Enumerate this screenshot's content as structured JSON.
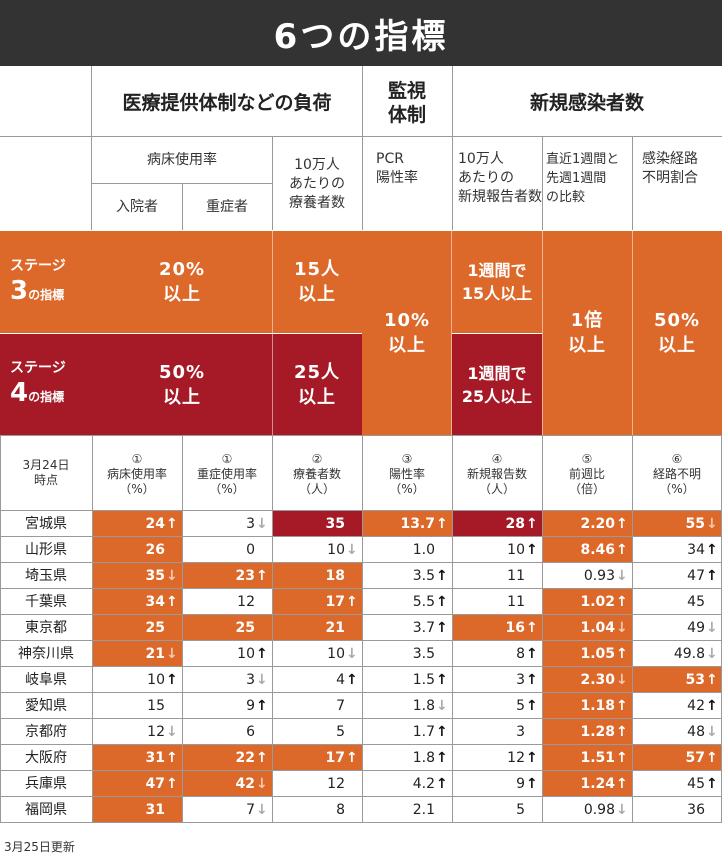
{
  "title": "6つの指標",
  "groups": {
    "medical": "医療提供体制などの負荷",
    "monitoring": "監視\n体制",
    "infections": "新規感染者数"
  },
  "sub_headers": {
    "bed_usage": "病床使用率",
    "admitted": "入院者",
    "severe": "重症者",
    "recuperating": "10万人\nあたりの\n療養者数",
    "pcr": "PCR\n陽性率",
    "new_reports": "10万人\nあたりの\n新規報告者数",
    "week_ratio": "直近1週間と\n先週1週間\nの比較",
    "unknown_route": "感染経路\n不明割合"
  },
  "stages": {
    "stage3": {
      "label_top": "ステージ",
      "label_num": "3",
      "label_suffix": "の指標",
      "beds": "20%\n以上",
      "recuperating": "15人\n以上",
      "new_reports": "1週間で\n15人以上"
    },
    "stage4": {
      "label_top": "ステージ",
      "label_num": "4",
      "label_suffix": "の指標",
      "beds": "50%\n以上",
      "recuperating": "25人\n以上",
      "new_reports": "1週間で\n25人以上"
    },
    "pcr": "10%\n以上",
    "week_ratio": "1倍\n以上",
    "unknown_route": "50%\n以上"
  },
  "table": {
    "date_header": "3月24日\n時点",
    "columns": [
      "①\n病床使用率\n（%）",
      "①\n重症使用率\n（%）",
      "②\n療養者数\n（人）",
      "③\n陽性率\n（%）",
      "④\n新規報告数\n（人）",
      "⑤\n前週比\n（倍）",
      "⑥\n経路不明\n（%）"
    ],
    "rows": [
      {
        "pref": "宮城県",
        "cells": [
          {
            "v": "24",
            "a": "up",
            "h": "o"
          },
          {
            "v": "3",
            "a": "down",
            "h": ""
          },
          {
            "v": "35",
            "a": "",
            "h": "r"
          },
          {
            "v": "13.7",
            "a": "up",
            "h": "o"
          },
          {
            "v": "28",
            "a": "up",
            "h": "r"
          },
          {
            "v": "2.20",
            "a": "up",
            "h": "o"
          },
          {
            "v": "55",
            "a": "down",
            "h": "o"
          }
        ]
      },
      {
        "pref": "山形県",
        "cells": [
          {
            "v": "26",
            "a": "",
            "h": "o"
          },
          {
            "v": "0",
            "a": "",
            "h": ""
          },
          {
            "v": "10",
            "a": "down",
            "h": ""
          },
          {
            "v": "1.0",
            "a": "",
            "h": ""
          },
          {
            "v": "10",
            "a": "up",
            "h": ""
          },
          {
            "v": "8.46",
            "a": "up",
            "h": "o"
          },
          {
            "v": "34",
            "a": "up",
            "h": ""
          }
        ]
      },
      {
        "pref": "埼玉県",
        "cells": [
          {
            "v": "35",
            "a": "down",
            "h": "o"
          },
          {
            "v": "23",
            "a": "up",
            "h": "o"
          },
          {
            "v": "18",
            "a": "",
            "h": "o"
          },
          {
            "v": "3.5",
            "a": "up",
            "h": ""
          },
          {
            "v": "11",
            "a": "",
            "h": ""
          },
          {
            "v": "0.93",
            "a": "down",
            "h": ""
          },
          {
            "v": "47",
            "a": "up",
            "h": ""
          }
        ]
      },
      {
        "pref": "千葉県",
        "cells": [
          {
            "v": "34",
            "a": "up",
            "h": "o"
          },
          {
            "v": "12",
            "a": "",
            "h": ""
          },
          {
            "v": "17",
            "a": "up",
            "h": "o"
          },
          {
            "v": "5.5",
            "a": "up",
            "h": ""
          },
          {
            "v": "11",
            "a": "",
            "h": ""
          },
          {
            "v": "1.02",
            "a": "up",
            "h": "o"
          },
          {
            "v": "45",
            "a": "",
            "h": ""
          }
        ]
      },
      {
        "pref": "東京都",
        "cells": [
          {
            "v": "25",
            "a": "",
            "h": "o"
          },
          {
            "v": "25",
            "a": "",
            "h": "o"
          },
          {
            "v": "21",
            "a": "",
            "h": "o"
          },
          {
            "v": "3.7",
            "a": "up",
            "h": ""
          },
          {
            "v": "16",
            "a": "up",
            "h": "o"
          },
          {
            "v": "1.04",
            "a": "down",
            "h": "o"
          },
          {
            "v": "49",
            "a": "down",
            "h": ""
          }
        ]
      },
      {
        "pref": "神奈川県",
        "cells": [
          {
            "v": "21",
            "a": "down",
            "h": "o"
          },
          {
            "v": "10",
            "a": "up",
            "h": ""
          },
          {
            "v": "10",
            "a": "down",
            "h": ""
          },
          {
            "v": "3.5",
            "a": "",
            "h": ""
          },
          {
            "v": "8",
            "a": "up",
            "h": ""
          },
          {
            "v": "1.05",
            "a": "up",
            "h": "o"
          },
          {
            "v": "49.8",
            "a": "down",
            "h": ""
          }
        ]
      },
      {
        "pref": "岐阜県",
        "cells": [
          {
            "v": "10",
            "a": "up",
            "h": ""
          },
          {
            "v": "3",
            "a": "down",
            "h": ""
          },
          {
            "v": "4",
            "a": "up",
            "h": ""
          },
          {
            "v": "1.5",
            "a": "up",
            "h": ""
          },
          {
            "v": "3",
            "a": "up",
            "h": ""
          },
          {
            "v": "2.30",
            "a": "down",
            "h": "o"
          },
          {
            "v": "53",
            "a": "up",
            "h": "o"
          }
        ]
      },
      {
        "pref": "愛知県",
        "cells": [
          {
            "v": "15",
            "a": "",
            "h": ""
          },
          {
            "v": "9",
            "a": "up",
            "h": ""
          },
          {
            "v": "7",
            "a": "",
            "h": ""
          },
          {
            "v": "1.8",
            "a": "down",
            "h": ""
          },
          {
            "v": "5",
            "a": "up",
            "h": ""
          },
          {
            "v": "1.18",
            "a": "up",
            "h": "o"
          },
          {
            "v": "42",
            "a": "up",
            "h": ""
          }
        ]
      },
      {
        "pref": "京都府",
        "cells": [
          {
            "v": "12",
            "a": "down",
            "h": ""
          },
          {
            "v": "6",
            "a": "",
            "h": ""
          },
          {
            "v": "5",
            "a": "",
            "h": ""
          },
          {
            "v": "1.7",
            "a": "up",
            "h": ""
          },
          {
            "v": "3",
            "a": "",
            "h": ""
          },
          {
            "v": "1.28",
            "a": "up",
            "h": "o"
          },
          {
            "v": "48",
            "a": "down",
            "h": ""
          }
        ]
      },
      {
        "pref": "大阪府",
        "cells": [
          {
            "v": "31",
            "a": "up",
            "h": "o"
          },
          {
            "v": "22",
            "a": "up",
            "h": "o"
          },
          {
            "v": "17",
            "a": "up",
            "h": "o"
          },
          {
            "v": "1.8",
            "a": "up",
            "h": ""
          },
          {
            "v": "12",
            "a": "up",
            "h": ""
          },
          {
            "v": "1.51",
            "a": "up",
            "h": "o"
          },
          {
            "v": "57",
            "a": "up",
            "h": "o"
          }
        ]
      },
      {
        "pref": "兵庫県",
        "cells": [
          {
            "v": "47",
            "a": "up",
            "h": "o"
          },
          {
            "v": "42",
            "a": "down",
            "h": "o"
          },
          {
            "v": "12",
            "a": "",
            "h": ""
          },
          {
            "v": "4.2",
            "a": "up",
            "h": ""
          },
          {
            "v": "9",
            "a": "up",
            "h": ""
          },
          {
            "v": "1.24",
            "a": "up",
            "h": "o"
          },
          {
            "v": "45",
            "a": "up",
            "h": ""
          }
        ]
      },
      {
        "pref": "福岡県",
        "cells": [
          {
            "v": "31",
            "a": "",
            "h": "o"
          },
          {
            "v": "7",
            "a": "down",
            "h": ""
          },
          {
            "v": "8",
            "a": "",
            "h": ""
          },
          {
            "v": "2.1",
            "a": "",
            "h": ""
          },
          {
            "v": "5",
            "a": "",
            "h": ""
          },
          {
            "v": "0.98",
            "a": "down",
            "h": ""
          },
          {
            "v": "36",
            "a": "",
            "h": ""
          }
        ]
      }
    ]
  },
  "footer": "3月25日更新",
  "colors": {
    "stage3": "#dc6829",
    "stage4": "#a51a26",
    "title_bg": "#333333"
  }
}
